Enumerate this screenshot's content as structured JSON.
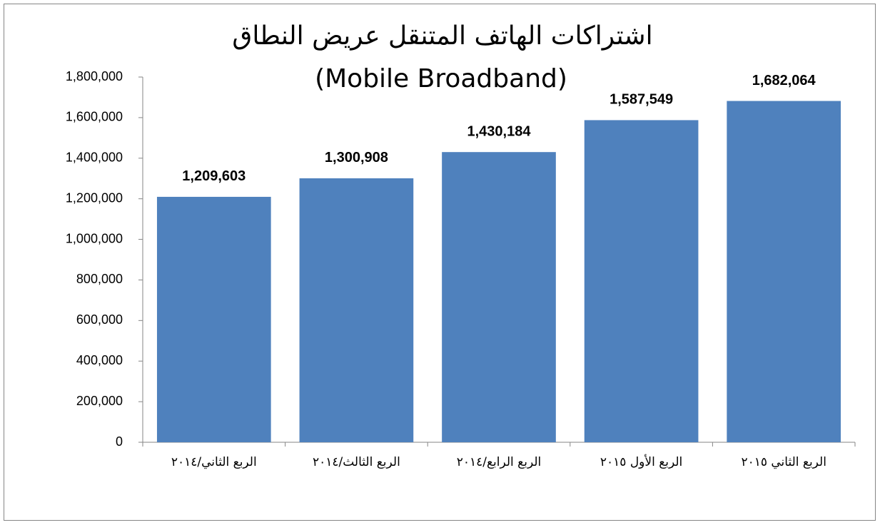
{
  "chart_data": {
    "type": "bar",
    "title": [
      "اشتراكات الهاتف المتنقل عريض النطاق",
      "(Mobile Broadband)"
    ],
    "categories": [
      "الربع الثاني/٢٠١٤",
      "الربع الثالث/٢٠١٤",
      "الربع الرابع/٢٠١٤",
      "الربع الأول ٢٠١٥",
      "الربع الثاني ٢٠١٥"
    ],
    "values": [
      1209603,
      1300908,
      1430184,
      1587549,
      1682064
    ],
    "value_labels": [
      "1,209,603",
      "1,300,908",
      "1,430,184",
      "1,587,549",
      "1,682,064"
    ],
    "color": "#4f81bd",
    "ylim": [
      0,
      1800000
    ],
    "yticks": [
      0,
      {
        "value": 200000,
        "label": "200,000"
      },
      {
        "value": 400000,
        "label": "400,000"
      },
      {
        "value": 600000,
        "label": "600,000"
      },
      {
        "value": 800000,
        "label": "800,000"
      },
      {
        "value": 1000000,
        "label": "1,000,000"
      },
      {
        "value": 1200000,
        "label": "1,200,000"
      },
      {
        "value": 1400000,
        "label": "1,400,000"
      },
      {
        "value": 1600000,
        "label": "1,600,000"
      },
      {
        "value": 1800000,
        "label": "1,800,000"
      }
    ],
    "grid": false
  }
}
